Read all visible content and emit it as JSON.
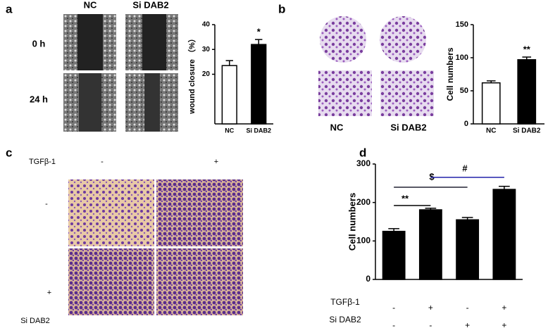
{
  "panels": {
    "a": {
      "label": "a",
      "columns": [
        "NC",
        "Si DAB2"
      ],
      "rows": [
        "0 h",
        "24 h"
      ]
    },
    "b": {
      "label": "b",
      "columns": [
        "NC",
        "Si DAB2"
      ]
    },
    "c": {
      "label": "c",
      "top_factor": "TGFβ-1",
      "top_levels": [
        "-",
        "+"
      ],
      "side_levels": [
        "-",
        "+"
      ],
      "side_factor": "Si DAB2"
    },
    "d": {
      "label": "d"
    }
  },
  "chart_data": [
    {
      "type": "bar",
      "ylabel": "wound closure （%）",
      "categories": [
        "NC",
        "Si DAB2"
      ],
      "values": [
        23.5,
        32
      ],
      "errors": [
        2,
        2
      ],
      "fills": [
        "#ffffff",
        "#000000"
      ],
      "ylim": [
        0,
        40
      ],
      "yticks": [
        20,
        30,
        40
      ],
      "annotations": [
        "*"
      ]
    },
    {
      "type": "bar",
      "ylabel": "Cell numbers",
      "categories": [
        "NC",
        "Si DAB2"
      ],
      "values": [
        62,
        97
      ],
      "errors": [
        3,
        4
      ],
      "fills": [
        "#ffffff",
        "#000000"
      ],
      "ylim": [
        0,
        150
      ],
      "yticks": [
        0,
        50,
        100,
        150
      ],
      "annotations": [
        "**"
      ]
    },
    {
      "type": "bar",
      "ylabel": "Cell numbers",
      "categories": [
        null,
        null,
        null,
        null
      ],
      "values": [
        125,
        181,
        155,
        234
      ],
      "errors": [
        7,
        4,
        6,
        8
      ],
      "fills": [
        "#000000",
        "#000000",
        "#000000",
        "#000000"
      ],
      "ylim": [
        0,
        300
      ],
      "yticks": [
        0,
        100,
        200,
        300
      ],
      "annotations": [
        "**",
        "$",
        "#"
      ],
      "conditions": [
        {
          "name": "TGFβ-1",
          "values": [
            "-",
            "+",
            "-",
            "+"
          ]
        },
        {
          "name": "Si DAB2",
          "values": [
            "-",
            "-",
            "+",
            "+"
          ]
        }
      ]
    }
  ]
}
